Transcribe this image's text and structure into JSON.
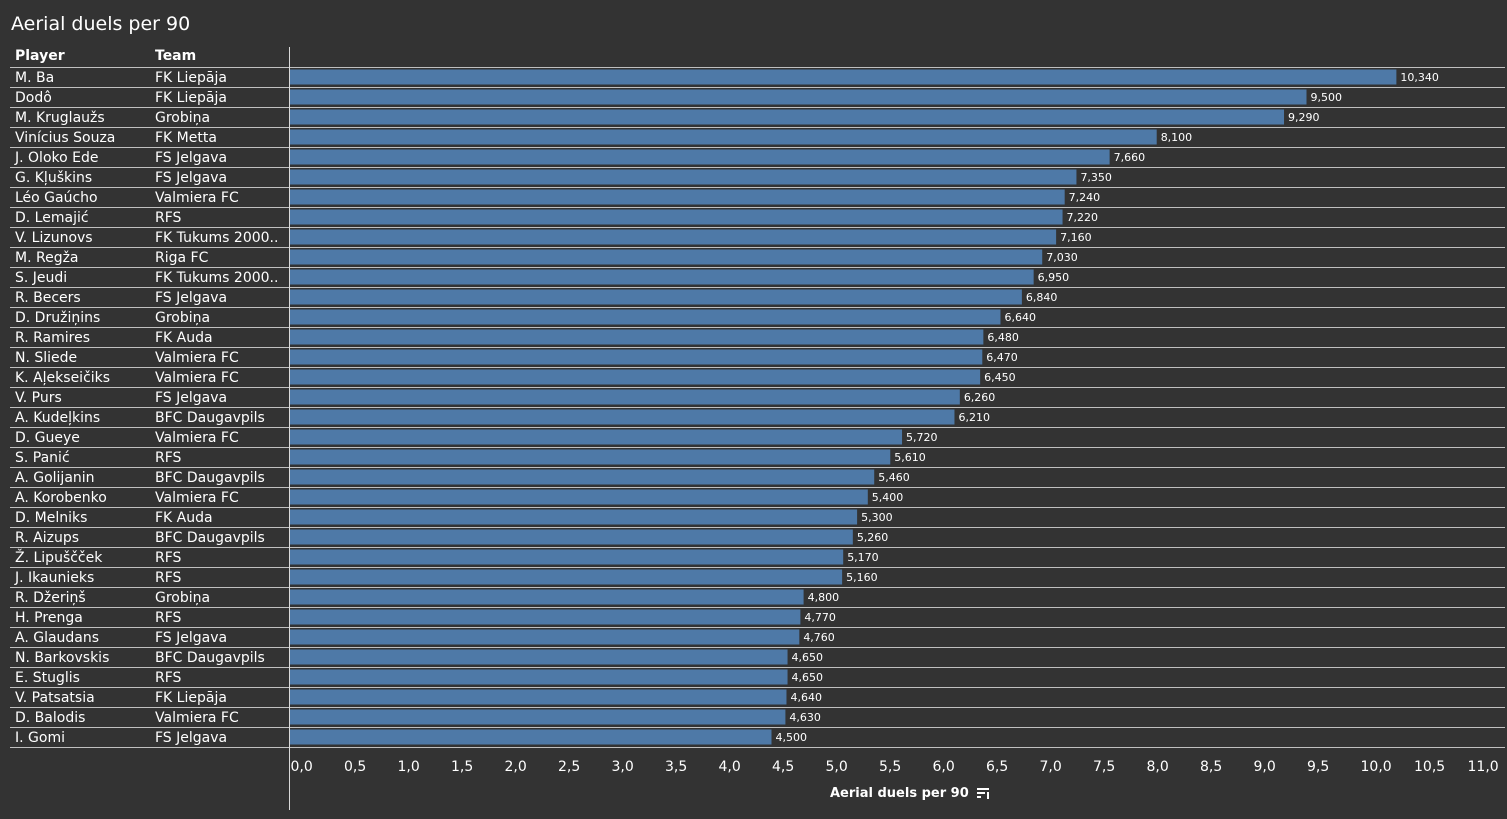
{
  "colors": {
    "background": "#333333",
    "bar": "#4e79a7",
    "grid": "#d9d9d9",
    "text": "#ffffff"
  },
  "table": {
    "player_header": "Player",
    "team_header": "Team"
  },
  "axis": {
    "sort_icon": "sort-descending-icon"
  },
  "chart_data": {
    "type": "bar",
    "orientation": "horizontal",
    "title": "Aerial duels per 90",
    "xlabel": "Aerial duels per 90",
    "xlim": [
      0,
      11.4
    ],
    "ticks": [
      "0,0",
      "0,5",
      "1,0",
      "1,5",
      "2,0",
      "2,5",
      "3,0",
      "3,5",
      "4,0",
      "4,5",
      "5,0",
      "5,5",
      "6,0",
      "6,5",
      "7,0",
      "7,5",
      "8,0",
      "8,5",
      "9,0",
      "9,5",
      "10,0",
      "10,5",
      "11,0"
    ],
    "tick_values": [
      0,
      0.5,
      1,
      1.5,
      2,
      2.5,
      3,
      3.5,
      4,
      4.5,
      5,
      5.5,
      6,
      6.5,
      7,
      7.5,
      8,
      8.5,
      9,
      9.5,
      10,
      10.5,
      11
    ],
    "rows": [
      {
        "player": "M. Ba",
        "team": "FK Liepāja",
        "value": 10.34,
        "label": "10,340"
      },
      {
        "player": "Dodô",
        "team": "FK Liepāja",
        "value": 9.5,
        "label": "9,500"
      },
      {
        "player": "M. Kruglaužs",
        "team": "Grobiņa",
        "value": 9.29,
        "label": "9,290"
      },
      {
        "player": "Vinícius Souza",
        "team": "FK Metta",
        "value": 8.1,
        "label": "8,100"
      },
      {
        "player": "J. Oloko Ede",
        "team": "FS Jelgava",
        "value": 7.66,
        "label": "7,660"
      },
      {
        "player": "G. Kļuškins",
        "team": "FS Jelgava",
        "value": 7.35,
        "label": "7,350"
      },
      {
        "player": "Léo Gaúcho",
        "team": "Valmiera FC",
        "value": 7.24,
        "label": "7,240"
      },
      {
        "player": "D. Lemajić",
        "team": "RFS",
        "value": 7.22,
        "label": "7,220"
      },
      {
        "player": "V. Lizunovs",
        "team": "FK Tukums 2000..",
        "value": 7.16,
        "label": "7,160"
      },
      {
        "player": "M. Regža",
        "team": "Riga FC",
        "value": 7.03,
        "label": "7,030"
      },
      {
        "player": "S. Jeudi",
        "team": "FK Tukums 2000..",
        "value": 6.95,
        "label": "6,950"
      },
      {
        "player": "R. Becers",
        "team": "FS Jelgava",
        "value": 6.84,
        "label": "6,840"
      },
      {
        "player": "D. Družiņins",
        "team": "Grobiņa",
        "value": 6.64,
        "label": "6,640"
      },
      {
        "player": "R. Ramires",
        "team": "FK Auda",
        "value": 6.48,
        "label": "6,480"
      },
      {
        "player": "N. Sliede",
        "team": "Valmiera FC",
        "value": 6.47,
        "label": "6,470"
      },
      {
        "player": "K. Aļekseičiks",
        "team": "Valmiera FC",
        "value": 6.45,
        "label": "6,450"
      },
      {
        "player": "V. Purs",
        "team": "FS Jelgava",
        "value": 6.26,
        "label": "6,260"
      },
      {
        "player": "A. Kudeļkins",
        "team": "BFC Daugavpils",
        "value": 6.21,
        "label": "6,210"
      },
      {
        "player": "D. Gueye",
        "team": "Valmiera FC",
        "value": 5.72,
        "label": "5,720"
      },
      {
        "player": "S. Panić",
        "team": "RFS",
        "value": 5.61,
        "label": "5,610"
      },
      {
        "player": "A. Golijanin",
        "team": "BFC Daugavpils",
        "value": 5.46,
        "label": "5,460"
      },
      {
        "player": "A. Korobenko",
        "team": "Valmiera FC",
        "value": 5.4,
        "label": "5,400"
      },
      {
        "player": "D. Melniks",
        "team": "FK Auda",
        "value": 5.3,
        "label": "5,300"
      },
      {
        "player": "R. Aizups",
        "team": "BFC Daugavpils",
        "value": 5.26,
        "label": "5,260"
      },
      {
        "player": "Ž. Lipuščček",
        "team": "RFS",
        "value": 5.17,
        "label": "5,170"
      },
      {
        "player": "J. Ikaunieks",
        "team": "RFS",
        "value": 5.16,
        "label": "5,160"
      },
      {
        "player": "R. Džeriņš",
        "team": "Grobiņa",
        "value": 4.8,
        "label": "4,800"
      },
      {
        "player": "H. Prenga",
        "team": "RFS",
        "value": 4.77,
        "label": "4,770"
      },
      {
        "player": "A. Glaudans",
        "team": "FS Jelgava",
        "value": 4.76,
        "label": "4,760"
      },
      {
        "player": "N. Barkovskis",
        "team": "BFC Daugavpils",
        "value": 4.65,
        "label": "4,650"
      },
      {
        "player": "E. Stuglis",
        "team": "RFS",
        "value": 4.65,
        "label": "4,650"
      },
      {
        "player": "V. Patsatsia",
        "team": "FK Liepāja",
        "value": 4.64,
        "label": "4,640"
      },
      {
        "player": "D. Balodis",
        "team": "Valmiera FC",
        "value": 4.63,
        "label": "4,630"
      },
      {
        "player": "I. Gomi",
        "team": "FS Jelgava",
        "value": 4.5,
        "label": "4,500"
      }
    ]
  }
}
